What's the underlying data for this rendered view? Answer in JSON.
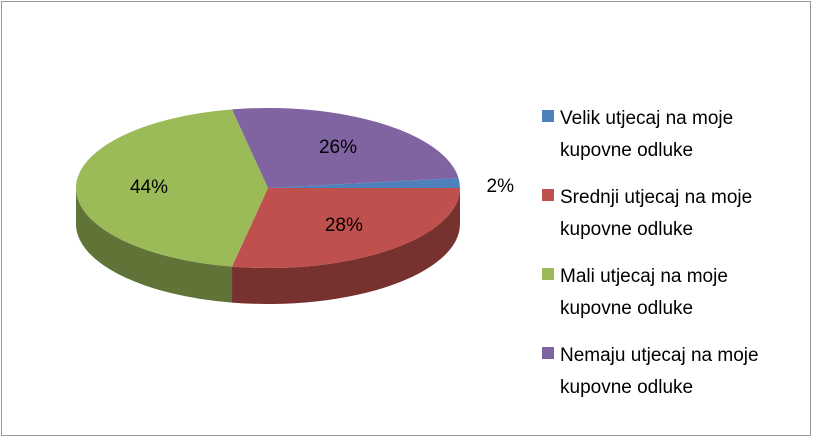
{
  "chart_data": {
    "type": "pie3d",
    "categories": [
      "Velik utjecaj na moje kupovne odluke",
      "Srednji utjecaj na moje kupovne odluke",
      "Mali utjecaj na moje kupovne odluke",
      "Nemaju utjecaj na moje kupovne odluke"
    ],
    "values": [
      2,
      28,
      44,
      26
    ],
    "value_labels": [
      "2%",
      "28%",
      "44%",
      "26%"
    ],
    "colors": [
      "#4f81bd",
      "#c0504d",
      "#9bbb59",
      "#8064a2"
    ],
    "legend": "right"
  }
}
